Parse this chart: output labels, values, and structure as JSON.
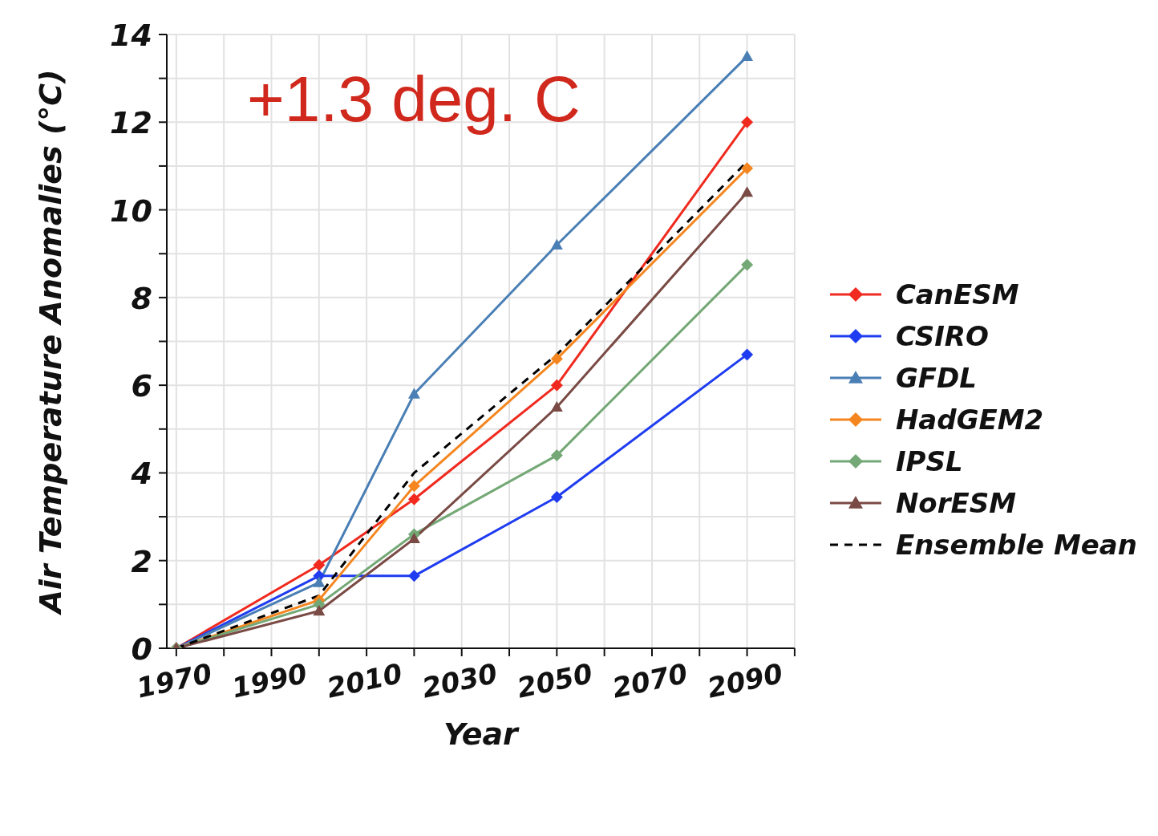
{
  "chart_data": {
    "type": "line",
    "xlabel": "Year",
    "ylabel": "Air Temperature Anomalies (°C)",
    "annotations": [
      "+1.3 deg. C"
    ],
    "x": [
      1970,
      2000,
      2020,
      2050,
      2090
    ],
    "xlim": [
      1968,
      2100
    ],
    "xticks": [
      1970,
      {
        "value": 1980,
        "label": null
      },
      1990,
      {
        "value": 2000,
        "label": null
      },
      2010,
      {
        "value": 2020,
        "label": null
      },
      2030,
      {
        "value": 2040,
        "label": null
      },
      2050,
      {
        "value": 2060,
        "label": null
      },
      2070,
      {
        "value": 2080,
        "label": null
      },
      2090,
      {
        "value": 2100,
        "label": null
      }
    ],
    "ylim": [
      0,
      14
    ],
    "yticks": [
      0,
      {
        "value": 1,
        "label": null
      },
      2,
      {
        "value": 3,
        "label": null
      },
      4,
      {
        "value": 5,
        "label": null
      },
      6,
      {
        "value": 7,
        "label": null
      },
      8,
      {
        "value": 9,
        "label": null
      },
      10,
      {
        "value": 11,
        "label": null
      },
      12,
      {
        "value": 13,
        "label": null
      },
      14
    ],
    "grid": true,
    "legend": "right",
    "series": [
      {
        "name": "CanESM",
        "color": "#f02a1e",
        "marker": "diamond",
        "values": [
          0,
          1.9,
          3.4,
          6.0,
          12.0
        ]
      },
      {
        "name": "CSIRO",
        "color": "#1f3cf0",
        "marker": "diamond",
        "values": [
          0,
          1.65,
          1.65,
          3.45,
          6.7
        ]
      },
      {
        "name": "GFDL",
        "color": "#4a7fb5",
        "marker": "triangle",
        "values": [
          0,
          1.5,
          5.8,
          9.2,
          13.5
        ]
      },
      {
        "name": "HadGEM2",
        "color": "#f5861f",
        "marker": "diamond",
        "values": [
          0,
          1.1,
          3.7,
          6.6,
          10.95
        ]
      },
      {
        "name": "IPSL",
        "color": "#74a876",
        "marker": "diamond",
        "values": [
          0,
          1.0,
          2.6,
          4.4,
          8.75
        ]
      },
      {
        "name": "NorESM",
        "color": "#7a4a45",
        "marker": "triangle",
        "values": [
          0,
          0.85,
          2.5,
          5.5,
          10.4
        ]
      },
      {
        "name": "Ensemble Mean",
        "color": "#000000",
        "marker": "none",
        "line_style": "dashed",
        "values": [
          0,
          1.2,
          4.0,
          6.7,
          11.1
        ]
      }
    ]
  }
}
